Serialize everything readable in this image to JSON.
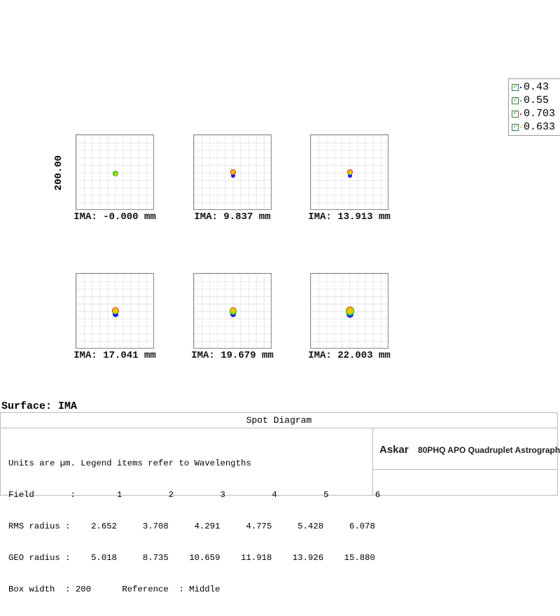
{
  "y_axis_label": "200.00",
  "fields": [
    {
      "label": "IMA: -0.000 mm",
      "row": 0,
      "col": 0
    },
    {
      "label": "IMA: 9.837 mm",
      "row": 0,
      "col": 1
    },
    {
      "label": "IMA: 13.913 mm",
      "row": 0,
      "col": 2
    },
    {
      "label": "IMA: 17.041 mm",
      "row": 1,
      "col": 0
    },
    {
      "label": "IMA: 19.679 mm",
      "row": 1,
      "col": 1
    },
    {
      "label": "IMA: 22.003 mm",
      "row": 1,
      "col": 2
    }
  ],
  "legend": [
    {
      "label": "0.43",
      "color": "#1a1aff"
    },
    {
      "label": "0.55",
      "color": "#22cc22"
    },
    {
      "label": "0.703",
      "color": "#ee2222"
    },
    {
      "label": "0.633",
      "color": "#e6c800"
    }
  ],
  "surface": "Surface: IMA",
  "table": {
    "title": "Spot Diagram",
    "lines": [
      "Units are µm. Legend items refer to Wavelengths",
      "Field       :        1         2         3         4         5         6",
      "RMS radius :    2.652     3.708     4.291     4.775     5.428     6.078",
      "GEO radius :    5.018     8.735    10.659    11.918    13.926    15.880",
      "Box width  : 200      Reference  : Middle"
    ],
    "logo": "Askar",
    "product": "80PHQ APO Quadruplet Astrograph"
  }
}
